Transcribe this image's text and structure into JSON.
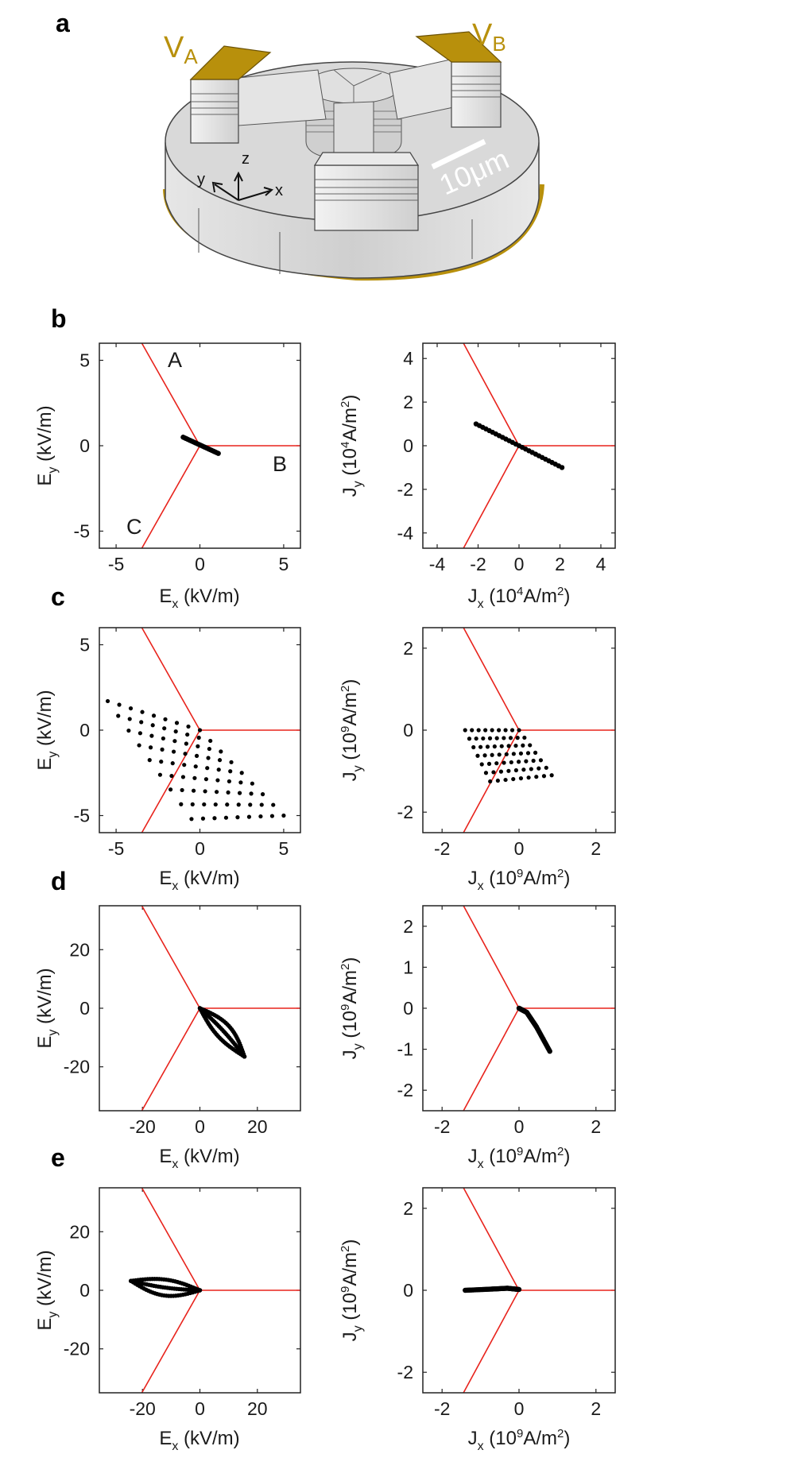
{
  "figure": {
    "panel_labels": [
      "a",
      "b",
      "c",
      "d",
      "e"
    ],
    "device": {
      "terminal_a": "V",
      "terminal_a_sub": "A",
      "terminal_b": "V",
      "terminal_b_sub": "B",
      "scale_bar": "10μm",
      "axis_x": "x",
      "axis_y": "y",
      "axis_z": "z",
      "gold_color": "#b8900c",
      "body_color": "#d9d9d9"
    },
    "colors": {
      "boundary": "#e8231c",
      "points": "#000000",
      "axes": "#222222"
    },
    "region_labels": [
      "A",
      "B",
      "C"
    ],
    "labels": {
      "ex": {
        "main": "E",
        "sub": "x",
        "unit": " (kV/m)"
      },
      "ey": {
        "main": "E",
        "sub": "y",
        "unit": " (kV/m)"
      },
      "jx4": {
        "main": "J",
        "sub": "x",
        "unit_pre": " (10",
        "unit_sup": "4",
        "unit_post": "A/m",
        "unit_sup2": "2",
        "unit_end": ")"
      },
      "jy4": {
        "main": "J",
        "sub": "y",
        "unit_pre": " (10",
        "unit_sup": "4",
        "unit_post": "A/m",
        "unit_sup2": "2",
        "unit_end": ")"
      },
      "jx9": {
        "main": "J",
        "sub": "x",
        "unit_pre": " (10",
        "unit_sup": "9",
        "unit_post": "A/m",
        "unit_sup2": "2",
        "unit_end": ")"
      },
      "jy9": {
        "main": "J",
        "sub": "y",
        "unit_pre": " (10",
        "unit_sup": "9",
        "unit_post": "A/m",
        "unit_sup2": "2",
        "unit_end": ")"
      }
    }
  },
  "chart_data": [
    {
      "panel": "b",
      "type": "scatter",
      "xlabel": "Ex (kV/m)",
      "ylabel": "Ey (kV/m)",
      "xlim": [
        -6,
        6
      ],
      "ylim": [
        -6,
        6
      ],
      "xticks": [
        -5,
        0,
        5
      ],
      "yticks": [
        -5,
        0,
        5
      ],
      "regions": [
        "A",
        "B",
        "C"
      ],
      "segments": [
        [
          [
            -1.0,
            0.5
          ],
          [
            1.1,
            -0.45
          ]
        ]
      ]
    },
    {
      "panel": "b",
      "type": "scatter",
      "xlabel": "Jx (10^4A/m^2)",
      "ylabel": "Jy (10^4A/m^2)",
      "xlim": [
        -4.7,
        4.7
      ],
      "ylim": [
        -4.7,
        4.7
      ],
      "xticks": [
        -4,
        -2,
        0,
        2,
        4
      ],
      "yticks": [
        -4,
        -2,
        0,
        2,
        4
      ],
      "segments": [
        [
          [
            -2.1,
            1.0
          ],
          [
            2.1,
            -1.0
          ]
        ]
      ]
    },
    {
      "panel": "c",
      "type": "scatter",
      "xlabel": "Ex (kV/m)",
      "ylabel": "Ey (kV/m)",
      "xlim": [
        -6,
        6
      ],
      "ylim": [
        -6,
        6
      ],
      "xticks": [
        -5,
        0,
        5
      ],
      "yticks": [
        -5,
        0,
        5
      ],
      "grid_points": {
        "A": [
          -5.5,
          1.7
        ],
        "B": [
          0,
          0
        ],
        "C": [
          5.0,
          -5.0
        ],
        "D": [
          -0.5,
          -5.2
        ],
        "nu": 9,
        "nv": 9
      }
    },
    {
      "panel": "c",
      "type": "scatter",
      "xlabel": "Jx (10^9A/m^2)",
      "ylabel": "Jy (10^9A/m^2)",
      "xlim": [
        -2.5,
        2.5
      ],
      "ylim": [
        -2.5,
        2.5
      ],
      "xticks": [
        -2,
        0,
        2
      ],
      "yticks": [
        -2,
        0,
        2
      ],
      "grid_points": {
        "A": [
          -1.4,
          0
        ],
        "B": [
          0,
          0
        ],
        "C": [
          0.85,
          -1.1
        ],
        "D": [
          -0.75,
          -1.25
        ],
        "nu": 9,
        "nv": 7
      }
    },
    {
      "panel": "d",
      "type": "scatter",
      "xlabel": "Ex (kV/m)",
      "ylabel": "Ey (kV/m)",
      "xlim": [
        -35,
        35
      ],
      "ylim": [
        -35,
        35
      ],
      "xticks": [
        -20,
        0,
        20
      ],
      "yticks": [
        -20,
        0,
        20
      ],
      "loop": {
        "start": [
          0,
          0
        ],
        "end": [
          15.5,
          -16.5
        ],
        "bulge": 3.2
      }
    },
    {
      "panel": "d",
      "type": "scatter",
      "xlabel": "Jx (10^9A/m^2)",
      "ylabel": "Jy (10^9A/m^2)",
      "xlim": [
        -2.5,
        2.5
      ],
      "ylim": [
        -2.5,
        2.5
      ],
      "xticks": [
        -2,
        0,
        2
      ],
      "yticks": [
        -2,
        -1,
        0,
        1,
        2
      ],
      "segments": [
        [
          [
            0,
            0
          ],
          [
            0.2,
            -0.1
          ],
          [
            0.45,
            -0.45
          ],
          [
            0.8,
            -1.05
          ]
        ]
      ]
    },
    {
      "panel": "e",
      "type": "scatter",
      "xlabel": "Ex (kV/m)",
      "ylabel": "Ey (kV/m)",
      "xlim": [
        -35,
        35
      ],
      "ylim": [
        -35,
        35
      ],
      "xticks": [
        -20,
        0,
        20
      ],
      "yticks": [
        -20,
        0,
        20
      ],
      "loop": {
        "start": [
          0,
          0
        ],
        "end": [
          -24,
          3.2
        ],
        "bulge": 3.4
      }
    },
    {
      "panel": "e",
      "type": "scatter",
      "xlabel": "Jx (10^9A/m^2)",
      "ylabel": "Jy (10^9A/m^2)",
      "xlim": [
        -2.5,
        2.5
      ],
      "ylim": [
        -2.5,
        2.5
      ],
      "xticks": [
        -2,
        0,
        2
      ],
      "yticks": [
        -2,
        0,
        2
      ],
      "segments": [
        [
          [
            -1.4,
            0.0
          ],
          [
            -0.7,
            0.03
          ],
          [
            -0.3,
            0.05
          ],
          [
            0,
            0.02
          ]
        ]
      ]
    }
  ]
}
